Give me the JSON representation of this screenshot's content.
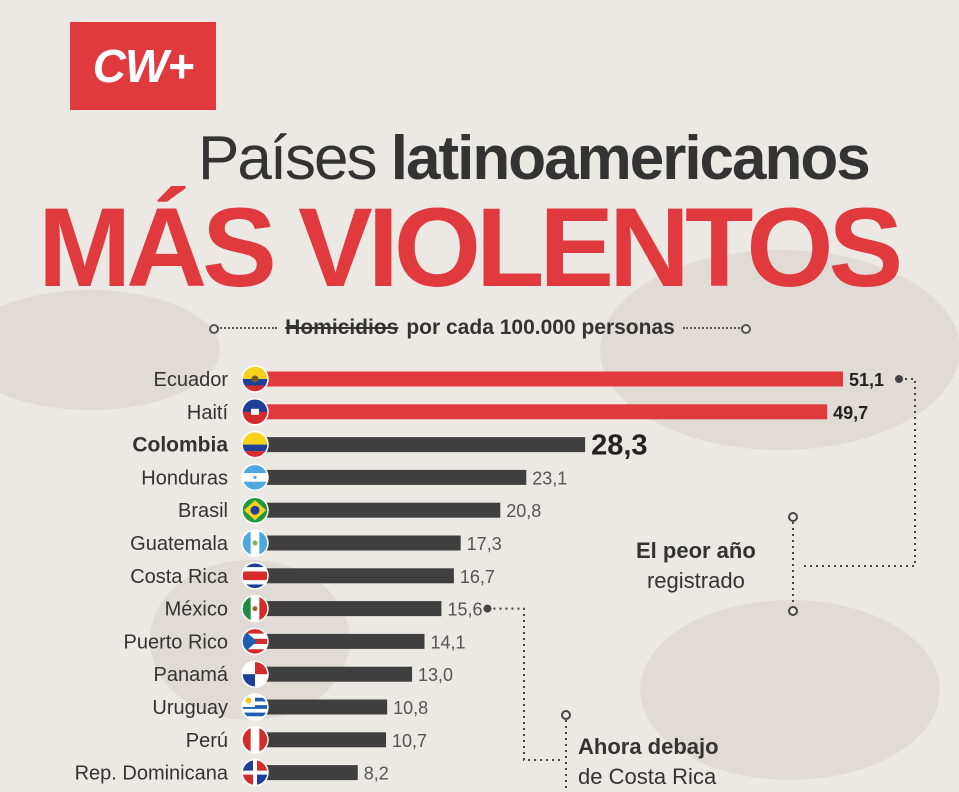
{
  "logo": {
    "text": "CW+"
  },
  "header": {
    "title_light": "Países ",
    "title_bold": "latinoamericanos",
    "title_main": "MÁS VIOLENTOS",
    "subtitle_strike": "Homicidios",
    "subtitle_rest": "por cada 100.000 personas"
  },
  "colors": {
    "accent": "#e0393e",
    "bar_dark": "#3f3f3f",
    "text": "#333333"
  },
  "chart_data": {
    "type": "bar",
    "orientation": "horizontal",
    "title": "Países latinoamericanos MÁS VIOLENTOS",
    "subtitle": "Homicidios por cada 100.000 personas",
    "categories": [
      "Ecuador",
      "Haití",
      "Colombia",
      "Honduras",
      "Brasil",
      "Guatemala",
      "Costa Rica",
      "México",
      "Puerto Rico",
      "Panamá",
      "Uruguay",
      "Perú",
      "Rep. Dominicana"
    ],
    "values": [
      51.1,
      49.7,
      28.3,
      23.1,
      20.8,
      17.3,
      16.7,
      15.6,
      14.1,
      13.0,
      10.8,
      10.7,
      8.2
    ],
    "value_labels": [
      "51,1",
      "49,7",
      "28,3",
      "23,1",
      "20,8",
      "17,3",
      "16,7",
      "15,6",
      "14,1",
      "13,0",
      "10,8",
      "10,7",
      "8,2"
    ],
    "highlighted": [
      "Ecuador",
      "Haití"
    ],
    "emphasized": "Colombia",
    "flag_icons": [
      "ecuador-flag-icon",
      "haiti-flag-icon",
      "colombia-flag-icon",
      "honduras-flag-icon",
      "brasil-flag-icon",
      "guatemala-flag-icon",
      "costa-rica-flag-icon",
      "mexico-flag-icon",
      "puerto-rico-flag-icon",
      "panama-flag-icon",
      "uruguay-flag-icon",
      "peru-flag-icon",
      "rep-dominicana-flag-icon"
    ],
    "xlim": [
      0,
      51.1
    ],
    "grid": false,
    "annotations": [
      {
        "bold": "El peor año",
        "text": "registrado",
        "target": "Ecuador"
      },
      {
        "bold": "Ahora debajo",
        "text": "de Costa Rica",
        "target": "México"
      }
    ]
  }
}
